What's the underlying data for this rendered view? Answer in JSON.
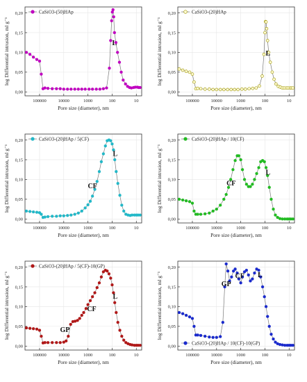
{
  "chart_data": [
    {
      "type": "line",
      "legend": "CaSiO3-(50)HAp",
      "color": "#c000c0",
      "marker": "circle",
      "legend_position": "top-left",
      "xlabel": "Pore size (diameter), nm",
      "ylabel": "log Differential intrusion, ml g⁻¹",
      "x_scale": "log-reversed",
      "xlim": [
        400000,
        6
      ],
      "ylim": [
        -0.01,
        0.215
      ],
      "x_ticks": [
        "100000",
        "10000",
        "1000",
        "100",
        "10"
      ],
      "y_ticks": [
        "0,00",
        "0,05",
        "0,10",
        "0,15",
        "0,20"
      ],
      "annotations": [
        {
          "text": "L",
          "x": 80,
          "y": 0.118
        }
      ],
      "x": [
        350000,
        250000,
        180000,
        130000,
        100000,
        85000,
        72000,
        60000,
        45000,
        30000,
        20000,
        14000,
        10000,
        7000,
        5000,
        3500,
        2500,
        1800,
        1300,
        900,
        650,
        450,
        320,
        230,
        170,
        130,
        115,
        105,
        98,
        92,
        86,
        80,
        70,
        60,
        50,
        42,
        35,
        28,
        23,
        19,
        16,
        13,
        11,
        9,
        8,
        7
      ],
      "y": [
        0.1,
        0.095,
        0.088,
        0.082,
        0.078,
        0.045,
        0.008,
        0.01,
        0.009,
        0.008,
        0.008,
        0.008,
        0.007,
        0.007,
        0.007,
        0.007,
        0.007,
        0.007,
        0.007,
        0.007,
        0.007,
        0.007,
        0.007,
        0.008,
        0.01,
        0.06,
        0.13,
        0.18,
        0.202,
        0.208,
        0.19,
        0.15,
        0.125,
        0.1,
        0.075,
        0.05,
        0.03,
        0.02,
        0.014,
        0.011,
        0.01,
        0.011,
        0.012,
        0.012,
        0.011,
        0.011
      ]
    },
    {
      "type": "line",
      "legend": "CaSiO3-(20)HAp",
      "color": "#d4cc00",
      "marker": "circle-open",
      "legend_position": "top-left",
      "xlabel": "Pore size (diameter), nm",
      "ylabel": "log Differential intrusion, ml g⁻¹",
      "x_scale": "log-reversed",
      "xlim": [
        400000,
        6
      ],
      "ylim": [
        -0.01,
        0.215
      ],
      "x_ticks": [
        "100000",
        "10000",
        "1000",
        "100",
        "10"
      ],
      "y_ticks": [
        "0,00",
        "0,05",
        "0,10",
        "0,15",
        "0,20"
      ],
      "annotations": [
        {
          "text": "L",
          "x": 75,
          "y": 0.092
        }
      ],
      "x": [
        350000,
        250000,
        180000,
        130000,
        100000,
        85000,
        72000,
        60000,
        45000,
        30000,
        20000,
        14000,
        10000,
        7000,
        5000,
        3500,
        2500,
        1800,
        1300,
        900,
        650,
        450,
        320,
        230,
        170,
        130,
        110,
        100,
        95,
        90,
        85,
        78,
        70,
        60,
        50,
        42,
        35,
        28,
        23,
        19,
        16,
        13,
        11,
        9,
        8,
        7
      ],
      "y": [
        0.058,
        0.055,
        0.052,
        0.05,
        0.045,
        0.025,
        0.008,
        0.009,
        0.008,
        0.007,
        0.007,
        0.006,
        0.006,
        0.006,
        0.006,
        0.006,
        0.006,
        0.006,
        0.006,
        0.007,
        0.007,
        0.008,
        0.009,
        0.01,
        0.015,
        0.04,
        0.095,
        0.15,
        0.178,
        0.177,
        0.16,
        0.13,
        0.1,
        0.075,
        0.05,
        0.032,
        0.02,
        0.014,
        0.012,
        0.01,
        0.01,
        0.01,
        0.01,
        0.01,
        0.01,
        0.01
      ]
    },
    {
      "type": "line",
      "legend": "CaSiO3-(20)HAp / 5(CF)",
      "color": "#22b8c8",
      "marker": "circle",
      "legend_position": "top-left",
      "xlabel": "Pore size (diameter), nm",
      "ylabel": "log Differential intrusion, ml g⁻¹",
      "x_scale": "log-reversed",
      "xlim": [
        400000,
        6
      ],
      "ylim": [
        -0.01,
        0.215
      ],
      "x_ticks": [
        "100000",
        "10000",
        "1000",
        "100",
        "10"
      ],
      "y_ticks": [
        "0,00",
        "0,05",
        "0,10",
        "0,15",
        "0,20"
      ],
      "annotations": [
        {
          "text": "CF",
          "x": 650,
          "y": 0.078
        },
        {
          "text": "L",
          "x": 75,
          "y": 0.16
        }
      ],
      "x": [
        350000,
        250000,
        180000,
        130000,
        100000,
        85000,
        72000,
        60000,
        45000,
        30000,
        20000,
        14000,
        10000,
        7000,
        5000,
        3500,
        2500,
        1800,
        1300,
        1000,
        800,
        650,
        520,
        420,
        340,
        280,
        230,
        190,
        160,
        135,
        115,
        100,
        88,
        78,
        68,
        58,
        48,
        40,
        33,
        27,
        22,
        18,
        15,
        12,
        10,
        8.5,
        7
      ],
      "y": [
        0.02,
        0.019,
        0.018,
        0.017,
        0.016,
        0.012,
        0.004,
        0.005,
        0.006,
        0.007,
        0.007,
        0.008,
        0.008,
        0.009,
        0.01,
        0.012,
        0.015,
        0.02,
        0.028,
        0.036,
        0.045,
        0.058,
        0.075,
        0.095,
        0.12,
        0.145,
        0.165,
        0.185,
        0.198,
        0.2,
        0.198,
        0.19,
        0.175,
        0.15,
        0.12,
        0.09,
        0.06,
        0.035,
        0.02,
        0.012,
        0.01,
        0.009,
        0.01,
        0.01,
        0.01,
        0.01,
        0.01
      ]
    },
    {
      "type": "line",
      "legend": "CaSiO3-(20)HAp / 10(CF)",
      "color": "#22bb22",
      "marker": "circle",
      "legend_position": "top-left",
      "xlabel": "Pore size (diameter), nm",
      "ylabel": "log Differential intrusion, ml g⁻¹",
      "x_scale": "log-reversed",
      "xlim": [
        400000,
        6
      ],
      "ylim": [
        -0.01,
        0.215
      ],
      "x_ticks": [
        "100000",
        "10000",
        "1000",
        "100",
        "10"
      ],
      "y_ticks": [
        "0,00",
        "0,05",
        "0,10",
        "0,15",
        "0,20"
      ],
      "annotations": [
        {
          "text": "CF",
          "x": 2500,
          "y": 0.085
        },
        {
          "text": "L",
          "x": 75,
          "y": 0.112
        }
      ],
      "x": [
        350000,
        250000,
        180000,
        130000,
        100000,
        85000,
        72000,
        60000,
        45000,
        30000,
        20000,
        14000,
        10000,
        7000,
        5000,
        4000,
        3200,
        2600,
        2100,
        1700,
        1400,
        1200,
        1000,
        850,
        700,
        580,
        480,
        400,
        330,
        270,
        220,
        180,
        150,
        125,
        105,
        90,
        78,
        66,
        55,
        45,
        37,
        30,
        24,
        19,
        15,
        12,
        10,
        8.5,
        7
      ],
      "y": [
        0.05,
        0.048,
        0.046,
        0.044,
        0.04,
        0.02,
        0.012,
        0.012,
        0.012,
        0.013,
        0.015,
        0.02,
        0.025,
        0.035,
        0.05,
        0.062,
        0.08,
        0.1,
        0.125,
        0.148,
        0.16,
        0.16,
        0.15,
        0.125,
        0.1,
        0.088,
        0.082,
        0.082,
        0.088,
        0.1,
        0.115,
        0.13,
        0.145,
        0.148,
        0.145,
        0.13,
        0.11,
        0.08,
        0.05,
        0.025,
        0.01,
        0.004,
        0.001,
        0.0,
        0.0,
        0.0,
        0.0,
        0.0,
        0.0
      ]
    },
    {
      "type": "line",
      "legend": "CaSiO3-(20)HAp / 5(CF)-10(GP)",
      "color": "#b01818",
      "marker": "circle",
      "legend_position": "top-left",
      "xlabel": "Pore size (diameter), nm",
      "ylabel": "log Differential intrusion, ml g⁻¹",
      "x_scale": "log-reversed",
      "xlim": [
        400000,
        6
      ],
      "ylim": [
        -0.01,
        0.215
      ],
      "x_ticks": [
        "100000",
        "10000",
        "1000",
        "100",
        "10"
      ],
      "y_ticks": [
        "0,00",
        "0,05",
        "0,10",
        "0,15",
        "0,20"
      ],
      "annotations": [
        {
          "text": "GP",
          "x": 9000,
          "y": 0.036
        },
        {
          "text": "CF",
          "x": 700,
          "y": 0.088
        },
        {
          "text": "L",
          "x": 75,
          "y": 0.12
        }
      ],
      "x": [
        350000,
        250000,
        180000,
        130000,
        100000,
        85000,
        72000,
        60000,
        45000,
        30000,
        20000,
        14000,
        10000,
        8000,
        6500,
        5200,
        4200,
        3400,
        2700,
        2200,
        1800,
        1500,
        1200,
        1000,
        800,
        650,
        520,
        420,
        340,
        280,
        230,
        190,
        160,
        135,
        115,
        100,
        88,
        78,
        68,
        58,
        48,
        40,
        33,
        27,
        22,
        18,
        15,
        12,
        10,
        8.5,
        7
      ],
      "y": [
        0.046,
        0.045,
        0.044,
        0.043,
        0.04,
        0.025,
        0.008,
        0.009,
        0.009,
        0.009,
        0.009,
        0.009,
        0.01,
        0.013,
        0.025,
        0.055,
        0.062,
        0.063,
        0.065,
        0.07,
        0.078,
        0.085,
        0.095,
        0.105,
        0.115,
        0.125,
        0.135,
        0.148,
        0.16,
        0.175,
        0.188,
        0.192,
        0.19,
        0.183,
        0.172,
        0.155,
        0.135,
        0.11,
        0.085,
        0.06,
        0.04,
        0.025,
        0.015,
        0.009,
        0.006,
        0.004,
        0.003,
        0.002,
        0.002,
        0.002,
        0.002
      ]
    },
    {
      "type": "line",
      "legend": "CaSiO3-(20)HAp / 10(CF)-10(GP)",
      "color": "#1a2acc",
      "marker": "circle",
      "legend_position": "bottom-left",
      "xlabel": "Pore size (diameter), nm",
      "ylabel": "log Differential intrusion, ml g⁻¹",
      "x_scale": "log-reversed",
      "xlim": [
        400000,
        6
      ],
      "ylim": [
        -0.01,
        0.215
      ],
      "x_ticks": [
        "100000",
        "10000",
        "1000",
        "100",
        "10"
      ],
      "y_ticks": [
        "0,00",
        "0,05",
        "0,10",
        "0,15",
        "0,20"
      ],
      "annotations": [
        {
          "text": "GP",
          "x": 4000,
          "y": 0.152
        },
        {
          "text": "CF",
          "x": 1100,
          "y": 0.172
        },
        {
          "text": "L",
          "x": 160,
          "y": 0.175
        }
      ],
      "x": [
        350000,
        250000,
        180000,
        130000,
        100000,
        85000,
        72000,
        60000,
        45000,
        30000,
        20000,
        14000,
        10000,
        7000,
        5500,
        4600,
        4000,
        3400,
        2900,
        2400,
        2000,
        1700,
        1400,
        1200,
        1000,
        850,
        700,
        580,
        480,
        400,
        330,
        270,
        220,
        180,
        150,
        125,
        105,
        90,
        78,
        66,
        55,
        45,
        37,
        30,
        24,
        19,
        15,
        12,
        10,
        8.5,
        7
      ],
      "y": [
        0.085,
        0.082,
        0.078,
        0.074,
        0.07,
        0.05,
        0.028,
        0.028,
        0.027,
        0.025,
        0.023,
        0.022,
        0.022,
        0.024,
        0.06,
        0.15,
        0.208,
        0.19,
        0.165,
        0.175,
        0.19,
        0.195,
        0.185,
        0.17,
        0.16,
        0.175,
        0.188,
        0.192,
        0.18,
        0.165,
        0.17,
        0.185,
        0.195,
        0.192,
        0.175,
        0.15,
        0.125,
        0.1,
        0.075,
        0.05,
        0.03,
        0.018,
        0.01,
        0.006,
        0.004,
        0.003,
        0.002,
        0.002,
        0.002,
        0.002,
        0.002
      ]
    }
  ]
}
